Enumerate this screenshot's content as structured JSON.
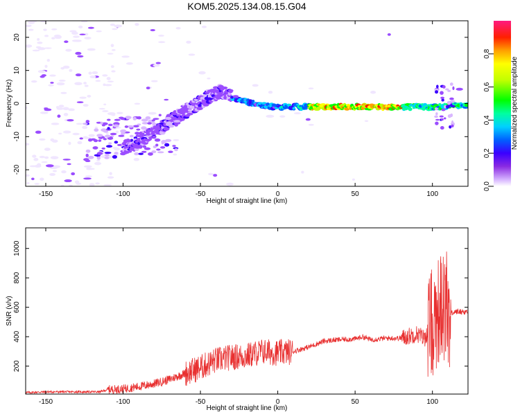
{
  "title": "KOM5.2025.134.08.15.G04",
  "chart_data": [
    {
      "type": "heatmap",
      "xlabel": "Height of straight line (km)",
      "ylabel": "Frequency (Hz)",
      "xlim": [
        -163,
        123
      ],
      "ylim": [
        -25,
        25
      ],
      "xticks": [
        -150,
        -100,
        -50,
        0,
        50,
        100
      ],
      "yticks": [
        -20,
        -10,
        0,
        10,
        20
      ],
      "colorbar": {
        "label": "Normalized spectral amplitude",
        "range": [
          0,
          1
        ],
        "ticks": [
          0.0,
          0.2,
          0.4,
          0.6,
          0.8
        ],
        "colormap": "rainbow"
      },
      "ridge": {
        "x": [
          -95,
          -85,
          -75,
          -65,
          -55,
          -45,
          -38,
          -30,
          -20,
          -10,
          0,
          20,
          40,
          60,
          80,
          95,
          105,
          115,
          123
        ],
        "frequency_hz": [
          -13,
          -10,
          -7,
          -4,
          -1,
          2,
          3.5,
          2,
          0.5,
          -0.5,
          -1,
          -1,
          -1,
          -1,
          -1,
          -1,
          -1,
          -0.5,
          -0.5
        ]
      }
    },
    {
      "type": "line",
      "xlabel": "Height of straight line (km)",
      "ylabel": "SNR (v/v)",
      "xlim": [
        -163,
        123
      ],
      "ylim": [
        10,
        1140
      ],
      "xticks": [
        -150,
        -100,
        -50,
        0,
        50,
        100
      ],
      "yticks": [
        200,
        400,
        600,
        800,
        1000
      ],
      "color": "#e83030",
      "series": [
        {
          "x": [
            -163,
            -150,
            -130,
            -115,
            -110,
            -100,
            -90,
            -80,
            -70,
            -60,
            -50,
            -40,
            -30,
            -20,
            -10,
            0,
            10,
            20,
            30,
            40,
            50,
            55,
            60,
            70,
            80,
            90,
            95,
            100,
            105,
            110,
            115,
            123
          ],
          "values": [
            20,
            25,
            25,
            25,
            40,
            45,
            60,
            80,
            110,
            150,
            190,
            240,
            260,
            270,
            300,
            290,
            300,
            330,
            370,
            380,
            385,
            400,
            380,
            390,
            390,
            420,
            390,
            500,
            600,
            550,
            570,
            570
          ]
        }
      ]
    }
  ]
}
